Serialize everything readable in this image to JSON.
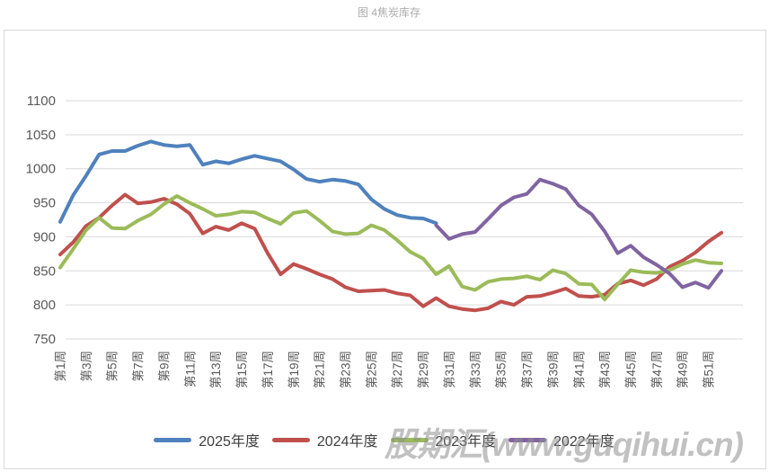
{
  "page": {
    "title": "图 4焦炭库存"
  },
  "watermark": {
    "text": "股期汇(www.guqihui.cn)"
  },
  "chart_data": {
    "type": "line",
    "title": "图 4焦炭库存",
    "grid": true,
    "legend_position": "bottom",
    "colors": {
      "grid": "#D9D9D9",
      "axis_text": "#595959",
      "series_2025": "#4F81BD",
      "series_2024": "#C0504D",
      "series_2023": "#9BBB59",
      "series_2022": "#8064A2"
    },
    "y_axis": {
      "min": 750,
      "max": 1100,
      "ticks": [
        1100,
        1050,
        1000,
        950,
        900,
        850,
        800,
        750
      ]
    },
    "x_axis": {
      "total_weeks": 52,
      "tick_weeks": [
        1,
        3,
        5,
        7,
        9,
        11,
        13,
        15,
        17,
        19,
        21,
        23,
        25,
        27,
        29,
        31,
        33,
        35,
        37,
        39,
        41,
        43,
        45,
        47,
        49,
        51
      ],
      "tick_labels": [
        "第1周",
        "第3周",
        "第5周",
        "第7周",
        "第9周",
        "第11周",
        "第13周",
        "第15周",
        "第17周",
        "第19周",
        "第21周",
        "第23周",
        "第25周",
        "第27周",
        "第29周",
        "第31周",
        "第33周",
        "第35周",
        "第37周",
        "第39周",
        "第41周",
        "第43周",
        "第45周",
        "第47周",
        "第49周",
        "第51周"
      ]
    },
    "series": [
      {
        "name": "2025年度",
        "color": "#4F81BD",
        "start_week": 1,
        "values": [
          922,
          961,
          990,
          1021,
          1026,
          1026,
          1034,
          1040,
          1035,
          1033,
          1035,
          1006,
          1011,
          1008,
          1014,
          1019,
          1015,
          1011,
          999,
          985,
          981,
          984,
          982,
          977,
          955,
          941,
          932,
          928,
          927,
          920
        ]
      },
      {
        "name": "2024年度",
        "color": "#C0504D",
        "start_week": 1,
        "values": [
          874,
          892,
          916,
          928,
          946,
          962,
          949,
          951,
          956,
          948,
          934,
          905,
          915,
          910,
          920,
          912,
          876,
          845,
          860,
          853,
          845,
          838,
          826,
          820,
          821,
          822,
          817,
          814,
          798,
          810,
          798,
          794,
          792,
          795,
          805,
          800,
          812,
          813,
          818,
          824,
          813,
          812,
          815,
          831,
          836,
          829,
          838,
          856,
          865,
          877,
          893,
          906
        ]
      },
      {
        "name": "2023年度",
        "color": "#9BBB59",
        "start_week": 1,
        "values": [
          855,
          882,
          910,
          928,
          913,
          912,
          924,
          933,
          948,
          960,
          950,
          941,
          931,
          933,
          937,
          936,
          927,
          919,
          935,
          938,
          924,
          908,
          904,
          905,
          917,
          910,
          895,
          878,
          868,
          845,
          857,
          827,
          822,
          834,
          838,
          839,
          842,
          837,
          851,
          846,
          831,
          830,
          808,
          830,
          851,
          848,
          847,
          851,
          860,
          866,
          862,
          861
        ]
      },
      {
        "name": "2022年度",
        "color": "#8064A2",
        "start_week": 30,
        "values": [
          917,
          897,
          904,
          907,
          926,
          946,
          958,
          963,
          984,
          978,
          970,
          946,
          933,
          908,
          876,
          887,
          870,
          859,
          846,
          826,
          833,
          825,
          850
        ]
      }
    ]
  }
}
